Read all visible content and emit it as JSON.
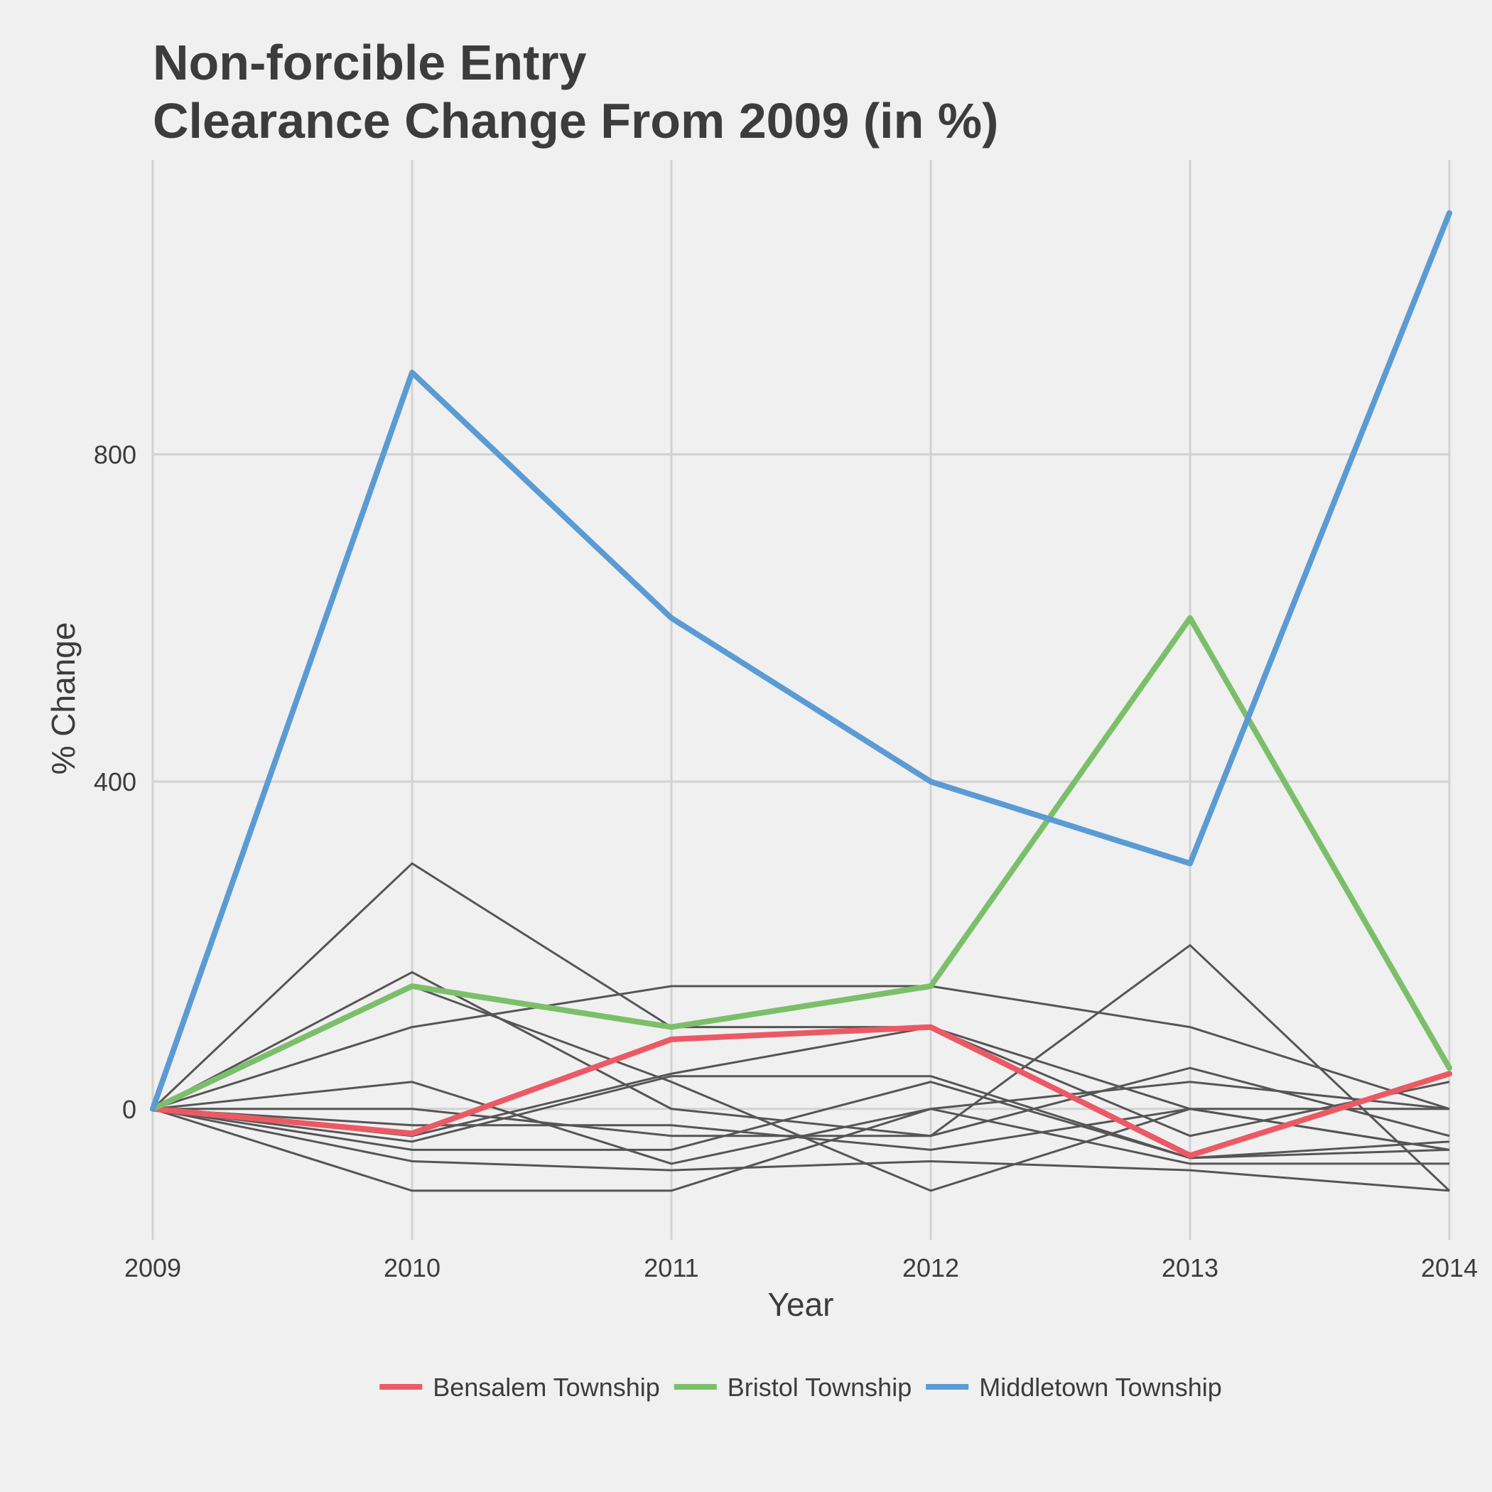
{
  "chart_data": {
    "type": "line",
    "title": [
      "Non-forcible Entry",
      "Clearance Change From 2009 (in %)"
    ],
    "xlabel": "Year",
    "ylabel": "% Change",
    "x": [
      2009,
      2010,
      2011,
      2012,
      2013,
      2014
    ],
    "x_tick_labels": [
      "2009",
      "2010",
      "2011",
      "2012",
      "2013",
      "2014"
    ],
    "ylim": [
      -160,
      1160
    ],
    "y_ticks": [
      0,
      400,
      800
    ],
    "y_tick_labels": [
      "0",
      "400",
      "800"
    ],
    "grid": true,
    "legend_position": "bottom",
    "background_color": "#f0f0f0",
    "grid_color": "#d2d2d2",
    "other_series_color": "#555555",
    "series": [
      {
        "name": "Bensalem Township",
        "highlight": true,
        "color": "#eb5a64",
        "values": [
          0,
          -30,
          85,
          100,
          -57,
          43
        ]
      },
      {
        "name": "Bristol Township",
        "highlight": true,
        "color": "#7bbf6a",
        "values": [
          0,
          150,
          100,
          150,
          600,
          50
        ]
      },
      {
        "name": "Middletown Township",
        "highlight": true,
        "color": "#5a9bd4",
        "values": [
          0,
          900,
          600,
          400,
          300,
          1095
        ]
      },
      {
        "highlight": false,
        "values": [
          0,
          300,
          100,
          100,
          0,
          -50
        ]
      },
      {
        "highlight": false,
        "values": [
          0,
          167,
          0,
          -33,
          200,
          -100
        ]
      },
      {
        "highlight": false,
        "values": [
          0,
          100,
          150,
          150,
          100,
          0
        ]
      },
      {
        "highlight": false,
        "values": [
          0,
          150,
          33,
          -100,
          0,
          0
        ]
      },
      {
        "highlight": false,
        "values": [
          0,
          33,
          -67,
          0,
          33,
          0
        ]
      },
      {
        "highlight": false,
        "values": [
          0,
          0,
          -33,
          -33,
          50,
          -33
        ]
      },
      {
        "highlight": false,
        "values": [
          0,
          -40,
          40,
          40,
          -60,
          -50
        ]
      },
      {
        "highlight": false,
        "values": [
          0,
          -50,
          -50,
          33,
          -60,
          -40
        ]
      },
      {
        "highlight": false,
        "values": [
          0,
          -64,
          -75,
          -64,
          -75,
          -100
        ]
      },
      {
        "highlight": false,
        "values": [
          0,
          -100,
          -100,
          0,
          -67,
          -67
        ]
      },
      {
        "highlight": false,
        "values": [
          0,
          -33,
          43,
          100,
          -33,
          33
        ]
      },
      {
        "highlight": false,
        "values": [
          0,
          -20,
          -20,
          -50,
          0,
          -50
        ]
      }
    ]
  }
}
